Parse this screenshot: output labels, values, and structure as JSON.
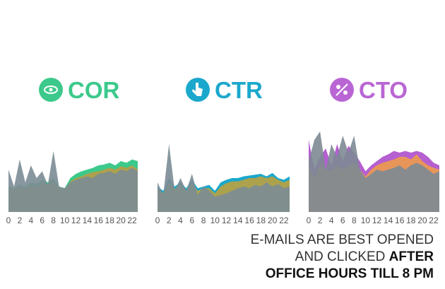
{
  "chart_data": [
    {
      "type": "area",
      "title": "COR",
      "categories": [
        0,
        null,
        2,
        null,
        4,
        null,
        6,
        null,
        8,
        null,
        10,
        null,
        12,
        null,
        14,
        null,
        16,
        null,
        18,
        null,
        20,
        null,
        22,
        null
      ],
      "ylim": [
        0,
        100
      ],
      "series": [
        {
          "color": "#3cc98b",
          "values": [
            30,
            28,
            32,
            30,
            35,
            33,
            38,
            35,
            40,
            30,
            28,
            40,
            45,
            48,
            50,
            52,
            55,
            56,
            58,
            55,
            60,
            58,
            62,
            60
          ]
        },
        {
          "color": "#aca24e",
          "values": [
            28,
            26,
            30,
            28,
            32,
            30,
            35,
            32,
            36,
            28,
            26,
            36,
            40,
            42,
            45,
            47,
            48,
            50,
            52,
            50,
            54,
            52,
            55,
            50
          ]
        },
        {
          "color": "#7b8c95",
          "values": [
            50,
            30,
            62,
            35,
            55,
            40,
            48,
            32,
            72,
            30,
            28,
            35,
            38,
            40,
            42,
            40,
            45,
            46,
            48,
            45,
            50,
            48,
            52,
            48
          ]
        }
      ]
    },
    {
      "type": "area",
      "title": "CTR",
      "categories": [
        0,
        null,
        2,
        null,
        4,
        null,
        6,
        null,
        8,
        null,
        10,
        null,
        12,
        null,
        14,
        null,
        16,
        null,
        18,
        null,
        20,
        null,
        22,
        null
      ],
      "ylim": [
        0,
        100
      ],
      "series": [
        {
          "color": "#1ba8cc",
          "values": [
            30,
            25,
            40,
            30,
            35,
            28,
            38,
            28,
            30,
            32,
            25,
            35,
            38,
            40,
            40,
            42,
            43,
            44,
            45,
            42,
            46,
            40,
            38,
            42
          ]
        },
        {
          "color": "#aca24e",
          "values": [
            28,
            22,
            35,
            27,
            32,
            25,
            34,
            25,
            28,
            28,
            22,
            30,
            34,
            36,
            36,
            38,
            40,
            40,
            42,
            40,
            42,
            38,
            35,
            38
          ]
        },
        {
          "color": "#7b8c95",
          "values": [
            35,
            20,
            80,
            25,
            40,
            25,
            45,
            20,
            30,
            25,
            18,
            20,
            22,
            25,
            28,
            30,
            28,
            32,
            30,
            35,
            30,
            33,
            28,
            30
          ]
        }
      ]
    },
    {
      "type": "area",
      "title": "CTO",
      "categories": [
        0,
        null,
        2,
        null,
        4,
        null,
        6,
        null,
        8,
        null,
        10,
        null,
        12,
        null,
        14,
        null,
        16,
        null,
        18,
        null,
        20,
        null,
        22,
        null
      ],
      "ylim": [
        0,
        100
      ],
      "series": [
        {
          "color": "#b55fd0",
          "values": [
            85,
            50,
            65,
            75,
            55,
            80,
            60,
            78,
            70,
            60,
            48,
            55,
            60,
            65,
            68,
            72,
            70,
            72,
            70,
            72,
            70,
            65,
            58,
            55
          ]
        },
        {
          "color": "#e8955a",
          "values": [
            55,
            40,
            55,
            50,
            48,
            55,
            50,
            55,
            58,
            50,
            42,
            50,
            55,
            58,
            60,
            62,
            65,
            65,
            62,
            68,
            60,
            55,
            52,
            50
          ]
        },
        {
          "color": "#7d8a94",
          "values": [
            60,
            85,
            95,
            50,
            80,
            65,
            90,
            70,
            90,
            50,
            40,
            45,
            50,
            48,
            50,
            52,
            55,
            50,
            55,
            58,
            55,
            50,
            45,
            48
          ]
        }
      ]
    }
  ],
  "caption": [
    "E-MAILS ARE BEST OPENED",
    "AND CLICKED",
    "AFTER",
    "OFFICE HOURS TILL 8 PM"
  ]
}
